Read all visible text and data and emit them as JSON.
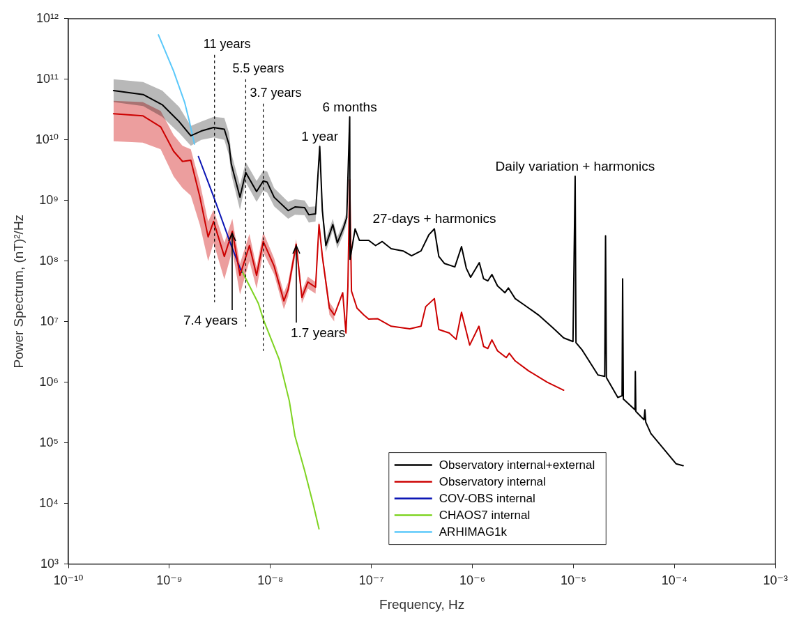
{
  "chart_data": {
    "type": "line",
    "xlabel": "Frequency, Hz",
    "ylabel": "Power Spectrum, (nT)²/Hz",
    "log": "xy",
    "grid": false,
    "legend": "bottom right",
    "xlim": [
      1e-10,
      0.001
    ],
    "xticks": [
      {
        "value": 1e-10,
        "label": "10⁻¹⁰"
      },
      {
        "value": 1e-09,
        "label": "10⁻⁹"
      },
      {
        "value": 1e-08,
        "label": "10⁻⁸"
      },
      {
        "value": 1e-07,
        "label": "10⁻⁷"
      },
      {
        "value": 1e-06,
        "label": "10⁻⁶"
      },
      {
        "value": 1e-05,
        "label": "10⁻⁵"
      },
      {
        "value": 0.0001,
        "label": "10⁻⁴"
      },
      {
        "value": 0.001,
        "label": "10⁻³"
      }
    ],
    "ylim": [
      1000.0,
      1000000000000.0
    ],
    "yticks": [
      {
        "value": 1000.0,
        "label": "10³"
      },
      {
        "value": 10000.0,
        "label": "10⁴"
      },
      {
        "value": 100000.0,
        "label": "10⁵"
      },
      {
        "value": 1000000.0,
        "label": "10⁶"
      },
      {
        "value": 10000000.0,
        "label": "10⁷"
      },
      {
        "value": 100000000.0,
        "label": "10⁸"
      },
      {
        "value": 1000000000.0,
        "label": "10⁹"
      },
      {
        "value": 10000000000.0,
        "label": "10¹⁰"
      },
      {
        "value": 100000000000.0,
        "label": "10¹¹"
      },
      {
        "value": 1000000000000.0,
        "label": "10¹²"
      }
    ],
    "series": [
      {
        "name": "Observatory internal+external",
        "color": "#000000",
        "x": [
          2.8e-10,
          5.5e-10,
          8.5e-10,
          1.25e-09,
          1.63e-09,
          2.07e-09,
          2.74e-09,
          3.5e-09,
          3.9e-09,
          4.1e-09,
          5e-09,
          5.7e-09,
          7.3e-09,
          8.5e-09,
          9.3e-09,
          1.09e-08,
          1.5e-08,
          1.75e-08,
          2.18e-08,
          2.4e-08,
          2.8e-08,
          3.08e-08,
          3.27e-08,
          3.54e-08,
          4.15e-08,
          4.6e-08,
          5.25e-08,
          5.7e-08,
          6.1e-08,
          6.15e-08,
          6.9e-08,
          7.6e-08,
          9.4e-08,
          1.1e-07,
          1.28e-07,
          1.57e-07,
          2.06e-07,
          2.5e-07,
          3.1e-07,
          3.7e-07,
          4.2e-07,
          4.65e-07,
          5.3e-07,
          6.7e-07,
          7.8e-07,
          8.7e-07,
          9.6e-07,
          1.17e-06,
          1.29e-06,
          1.42e-06,
          1.56e-06,
          1.77e-06,
          2.1e-06,
          2.27e-06,
          2.65e-06,
          3.3e-06,
          4.5e-06,
          6.2e-06,
          8e-06,
          9.9e-06,
          1.04e-05,
          1.06e-05,
          1.22e-05,
          1.75e-05,
          2.04e-05,
          2.08e-05,
          2.12e-05,
          2.75e-05,
          3.03e-05,
          3.07e-05,
          3.12e-05,
          4.07e-05,
          4.1e-05,
          4.15e-05,
          5e-05,
          5.1e-05,
          5.2e-05,
          5.85e-05,
          7.6e-05,
          0.000104,
          0.000122
        ],
        "values": [
          65000000000.0,
          56000000000.0,
          38000000000.0,
          20000000000.0,
          11700000000.0,
          14000000000.0,
          16000000000.0,
          15000000000.0,
          8300000000.0,
          4000000000.0,
          1130000000.0,
          2900000000.0,
          1400000000.0,
          2100000000.0,
          2000000000.0,
          1130000000.0,
          680000000.0,
          780000000.0,
          760000000.0,
          580000000.0,
          600000000.0,
          7800000000.0,
          680000000.0,
          180000000.0,
          400000000.0,
          200000000.0,
          340000000.0,
          520000000.0,
          24000000000.0,
          107000000.0,
          340000000.0,
          220000000.0,
          220000000.0,
          180000000.0,
          210000000.0,
          160000000.0,
          147000000.0,
          122000000.0,
          147000000.0,
          270000000.0,
          340000000.0,
          119000000.0,
          91000000.0,
          80000000.0,
          173000000.0,
          76000000.0,
          54000000.0,
          94000000.0,
          51000000.0,
          47000000.0,
          60000000.0,
          39000000.0,
          30000000.0,
          36000000.0,
          24000000.0,
          18600000.0,
          12900000.0,
          8000000.0,
          5400000.0,
          4700000.0,
          2500000000.0,
          4500000.0,
          3400000.0,
          1320000.0,
          1250000.0,
          260000000.0,
          1190000.0,
          560000.0,
          600000.0,
          51000000.0,
          530000.0,
          350000.0,
          1500000.0,
          330000.0,
          240000.0,
          350000.0,
          220000.0,
          142000.0,
          84000.0,
          45000.0,
          42000.0
        ],
        "upper": [
          100000000000.0,
          90000000000.0,
          65000000000.0,
          35000000000.0,
          17000000000.0,
          20000000000.0,
          24000000000.0,
          23000000000.0,
          13000000000.0,
          6000000000.0,
          1800000000.0,
          4300000000.0,
          2100000000.0,
          3100000000.0,
          3000000000.0,
          1600000000.0,
          950000000.0,
          1050000000.0,
          1000000000.0,
          780000000.0,
          800000000.0,
          9000000000.0,
          900000000.0,
          230000000.0,
          500000000.0,
          250000000.0,
          420000000.0,
          650000000.0,
          null,
          null,
          null,
          null,
          null,
          null,
          null,
          null,
          null,
          null,
          null,
          null,
          null,
          null,
          null,
          null,
          null,
          null,
          null,
          null,
          null,
          null,
          null,
          null,
          null,
          null,
          null,
          null,
          null,
          null,
          null,
          null,
          null,
          null,
          null,
          null,
          null,
          null,
          null,
          null,
          null,
          null,
          null,
          null,
          null,
          null,
          null,
          null,
          null,
          null,
          null,
          null,
          null
        ],
        "lower": [
          42000000000.0,
          36000000000.0,
          24000000000.0,
          13000000000.0,
          8000000000.0,
          10000000000.0,
          11000000000.0,
          10000000000.0,
          5500000000.0,
          2700000000.0,
          700000000.0,
          2000000000.0,
          950000000.0,
          1450000000.0,
          1350000000.0,
          800000000.0,
          500000000.0,
          580000000.0,
          570000000.0,
          430000000.0,
          450000000.0,
          6500000000.0,
          500000000.0,
          140000000.0,
          320000000.0,
          160000000.0,
          270000000.0,
          420000000.0,
          null,
          null,
          null,
          null,
          null,
          null,
          null,
          null,
          null,
          null,
          null,
          null,
          null,
          null,
          null,
          null,
          null,
          null,
          null,
          null,
          null,
          null,
          null,
          null,
          null,
          null,
          null,
          null,
          null,
          null,
          null,
          null,
          null,
          null,
          null,
          null,
          null,
          null,
          null,
          null,
          null,
          null,
          null,
          null,
          null,
          null,
          null,
          null,
          null,
          null,
          null,
          null,
          null
        ]
      },
      {
        "name": "Observatory internal",
        "color": "#cc0000",
        "x": [
          2.8e-10,
          5.45e-10,
          8.2e-10,
          1.1e-09,
          1.35e-09,
          1.63e-09,
          2e-09,
          2.42e-09,
          2.74e-09,
          3.5e-09,
          4.2e-09,
          5e-09,
          6.2e-09,
          7.3e-09,
          8.5e-09,
          1.09e-08,
          1.36e-08,
          1.5e-08,
          1.8e-08,
          2.05e-08,
          2.35e-08,
          2.8e-08,
          3.03e-08,
          3.27e-08,
          3.84e-08,
          4.3e-08,
          5.2e-08,
          5.6e-08,
          5.85e-08,
          6.1e-08,
          6.35e-08,
          7.2e-08,
          8.4e-08,
          9.4e-08,
          1.15e-07,
          1.57e-07,
          2.4e-07,
          3.1e-07,
          3.45e-07,
          4.2e-07,
          4.65e-07,
          5.9e-07,
          6.9e-07,
          7.8e-07,
          9.4e-07,
          1.16e-06,
          1.29e-06,
          1.42e-06,
          1.56e-06,
          1.77e-06,
          2.16e-06,
          2.32e-06,
          2.65e-06,
          3.6e-06,
          5.5e-06,
          8e-06
        ],
        "values": [
          27000000000.0,
          25000000000.0,
          16400000000.0,
          6500000000.0,
          4400000000.0,
          4600000000.0,
          1160000000.0,
          250000000.0,
          450000000.0,
          119000000.0,
          310000000.0,
          58000000.0,
          180000000.0,
          58000000.0,
          210000000.0,
          82000000.0,
          22000000.0,
          34000000.0,
          190000000.0,
          25000000.0,
          45000000.0,
          37000000.0,
          400000000.0,
          119000000.0,
          16700000.0,
          12900000.0,
          30000000.0,
          6500000.0,
          37000000.0,
          2200000000.0,
          32000000.0,
          16700000.0,
          12900000.0,
          11000000.0,
          11200000.0,
          8400000.0,
          7600000.0,
          8400000.0,
          17700000.0,
          24000000.0,
          7400000.0,
          6500000.0,
          5100000.0,
          14300000.0,
          4100000.0,
          8400000.0,
          3900000.0,
          3600000.0,
          5000000.0,
          3300000.0,
          2550000.0,
          3000000.0,
          2250000.0,
          1540000.0,
          1000000.0,
          740000.0
        ],
        "upper": [
          44000000000.0,
          42000000000.0,
          30000000000.0,
          12000000000.0,
          8000000000.0,
          7000000000.0,
          2000000000.0,
          450000000.0,
          700000000.0,
          200000000.0,
          500000000.0,
          90000000.0,
          280000000.0,
          80000000.0,
          300000000.0,
          110000000.0,
          30000000.0,
          45000000.0,
          230000000.0,
          32000000.0,
          55000000.0,
          45000000.0,
          460000000.0,
          140000000.0,
          21000000.0,
          16000000.0,
          null,
          null,
          null,
          null,
          null,
          null,
          null,
          null,
          null,
          null,
          null,
          null,
          null,
          null,
          null,
          null,
          null,
          null,
          null,
          null,
          null,
          null,
          null,
          null,
          null,
          null,
          null,
          null,
          null,
          null
        ],
        "lower": [
          9500000000.0,
          9000000000.0,
          7000000000.0,
          2500000000.0,
          1600000000.0,
          1200000000.0,
          400000000.0,
          100000000.0,
          200000000.0,
          50000000.0,
          150000000.0,
          28000000.0,
          100000000.0,
          35000000.0,
          140000000.0,
          60000000.0,
          16000000.0,
          26000000.0,
          150000000.0,
          20000000.0,
          35000000.0,
          29000000.0,
          340000000.0,
          100000000.0,
          13000000.0,
          10000000.0,
          null,
          null,
          null,
          null,
          null,
          null,
          null,
          null,
          null,
          null,
          null,
          null,
          null,
          null,
          null,
          null,
          null,
          null,
          null,
          null,
          null,
          null,
          null,
          null,
          null,
          null,
          null,
          null,
          null,
          null
        ]
      },
      {
        "name": "COV-OBS internal",
        "color": "#0a14b4",
        "x": [
          1.94e-09,
          2.74e-09,
          4.1e-09,
          5.2e-09
        ],
        "values": [
          5300000000.0,
          1160000000.0,
          180000000.0,
          65000000.0
        ]
      },
      {
        "name": "CHAOS7 internal",
        "color": "#7ed321",
        "x": [
          5.2e-09,
          7.6e-09,
          8.6e-09,
          1.22e-08,
          1.54e-08,
          1.75e-08,
          2.18e-08,
          2.67e-08,
          3.03e-08
        ],
        "values": [
          70000000.0,
          20000000.0,
          10400000.0,
          2400000.0,
          490000.0,
          130000.0,
          35000.0,
          9300.0,
          3800.0
        ]
      },
      {
        "name": "ARHIMAG1k",
        "color": "#5ac8fa",
        "x": [
          7.8e-10,
          1.1e-09,
          1.42e-09,
          1.58e-09,
          1.77e-09
        ],
        "values": [
          540000000000.0,
          137000000000.0,
          41000000000.0,
          20000000000.0,
          8500000000.0
        ]
      }
    ],
    "ref_lines": [
      {
        "axis": "x",
        "value": 2.8e-09,
        "label": "11 years",
        "line_style": "dashed"
      },
      {
        "axis": "x",
        "value": 5.7e-09,
        "label": "5.5 years",
        "line_style": "dashed"
      },
      {
        "axis": "x",
        "value": 8.5e-09,
        "label": "3.7 years",
        "line_style": "dashed"
      }
    ],
    "annotations": [
      {
        "text": "1 year",
        "x": 3.08e-08,
        "y": 7800000000.0
      },
      {
        "text": "6 months",
        "x": 6.1e-08,
        "y": 24000000000.0
      },
      {
        "text": "27-days + harmonics",
        "x": 4.2e-07,
        "y": 340000000.0
      },
      {
        "text": "Daily variation + harmonics",
        "x": 1.04e-05,
        "y": 2500000000.0
      },
      {
        "text": "7.4 years",
        "x": 4.2e-09,
        "y": 310000000.0
      },
      {
        "text": "1.7 years",
        "x": 1.8e-08,
        "y": 190000000.0
      }
    ]
  }
}
